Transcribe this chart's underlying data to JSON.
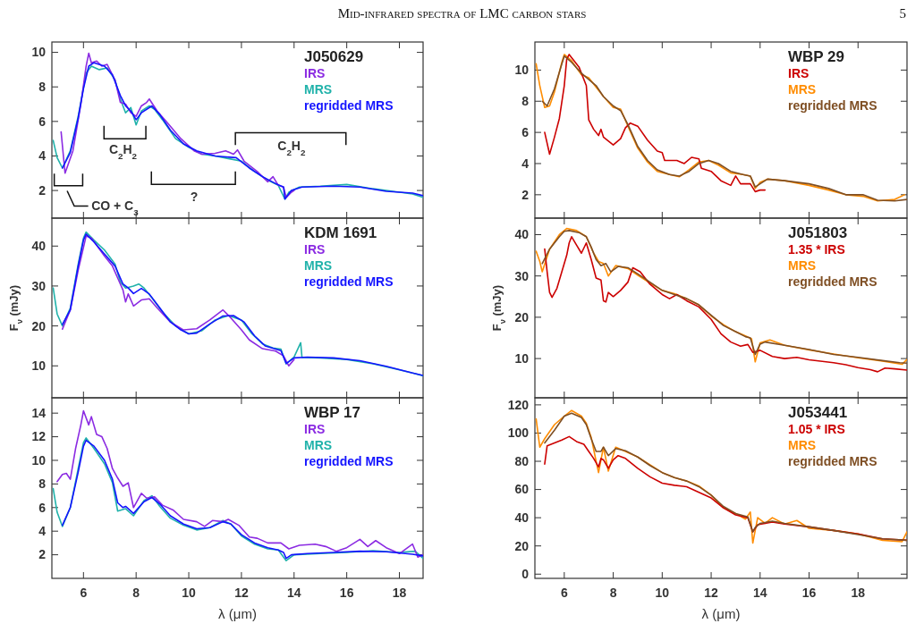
{
  "chart_data": [
    {
      "type": "line",
      "title": "J050629",
      "xlim": [
        4.8,
        18.9
      ],
      "ylim": [
        0.4,
        10.6
      ],
      "xticks": [
        6,
        8,
        10,
        12,
        14,
        16,
        18
      ],
      "yticks": [
        2,
        4,
        6,
        8,
        10
      ],
      "tick_labels": "y",
      "legend": "top right",
      "annotations": [
        "C$_{2}$H$_{2}$",
        "C$_{2}$H$_{2}$",
        "?",
        "CO + C$_{3}$",
        "Mid-infrared spectra of LMC carbon stars",
        "5"
      ],
      "series": [
        {
          "name": "IRS",
          "color": "#8b2be2",
          "x": [
            5.15,
            5.3,
            5.6,
            5.9,
            6.1,
            6.2,
            6.3,
            6.5,
            6.7,
            6.9,
            7.2,
            7.4,
            7.6,
            7.8,
            8.0,
            8.2,
            8.4,
            8.5,
            8.8,
            9.2,
            9.7,
            10.2,
            10.5,
            11.0,
            11.4,
            11.7,
            11.85,
            12.1,
            12.6,
            13.0,
            13.2,
            13.4,
            13.6,
            13.7,
            13.9,
            14.0
          ],
          "values": [
            5.4,
            3.0,
            4.3,
            7.0,
            9.2,
            9.95,
            9.4,
            9.5,
            9.2,
            9.3,
            8.4,
            7.1,
            7.0,
            6.5,
            6.3,
            6.9,
            7.1,
            7.3,
            6.6,
            5.9,
            5.0,
            4.3,
            4.1,
            4.15,
            4.3,
            4.1,
            4.35,
            3.7,
            3.1,
            2.5,
            2.8,
            2.3,
            2.2,
            1.6,
            1.9,
            2.0
          ]
        },
        {
          "name": "MRS",
          "color": "#20b2aa",
          "x": [
            4.85,
            5.0,
            5.2,
            5.5,
            5.8,
            6.1,
            6.3,
            6.6,
            6.9,
            7.2,
            7.4,
            7.6,
            7.8,
            8.0,
            8.2,
            8.5,
            8.7,
            9.0,
            9.5,
            10.0,
            10.5,
            11.0,
            11.5,
            12.0,
            12.5,
            13.0,
            13.4,
            13.65,
            13.8,
            14.2,
            15.0,
            16.0,
            17.0,
            18.0,
            18.5,
            18.9
          ],
          "values": [
            4.9,
            3.9,
            3.3,
            4.3,
            6.3,
            8.8,
            9.2,
            9.0,
            9.1,
            8.4,
            7.3,
            6.5,
            6.8,
            5.8,
            6.6,
            6.9,
            6.7,
            6.1,
            5.0,
            4.5,
            4.1,
            4.0,
            3.85,
            3.7,
            3.1,
            2.6,
            2.3,
            1.5,
            1.9,
            2.2,
            2.25,
            2.35,
            2.1,
            1.9,
            1.8,
            1.6
          ]
        },
        {
          "name": "regridded MRS",
          "color": "#1414ff",
          "x": [
            5.2,
            5.5,
            5.8,
            6.0,
            6.2,
            6.4,
            6.8,
            7.1,
            7.4,
            7.6,
            7.8,
            8.0,
            8.2,
            8.6,
            8.9,
            9.3,
            9.8,
            10.3,
            11.0,
            11.8,
            12.3,
            12.8,
            13.3,
            13.6,
            13.65,
            13.9,
            14.3,
            15.5,
            16.5,
            17.5,
            18.5,
            18.9
          ],
          "values": [
            3.3,
            4.2,
            6.2,
            7.9,
            9.2,
            9.4,
            9.2,
            8.7,
            7.5,
            6.9,
            6.6,
            6.1,
            6.5,
            6.9,
            6.4,
            5.5,
            4.7,
            4.3,
            4.0,
            3.9,
            3.3,
            2.8,
            2.4,
            2.2,
            1.5,
            2.0,
            2.2,
            2.25,
            2.2,
            1.95,
            1.85,
            1.7
          ]
        }
      ]
    },
    {
      "type": "line",
      "title": "WBP 29",
      "xlim": [
        4.8,
        20
      ],
      "ylim": [
        0.5,
        11.8
      ],
      "xticks": [
        6,
        8,
        10,
        12,
        14,
        16,
        18
      ],
      "yticks": [
        2,
        4,
        6,
        8,
        10
      ],
      "tick_labels": "y",
      "legend": "top right",
      "series": [
        {
          "name": "IRS",
          "color": "#cc0000",
          "x": [
            5.2,
            5.4,
            5.6,
            5.8,
            6.0,
            6.1,
            6.2,
            6.4,
            6.6,
            6.9,
            7.0,
            7.2,
            7.4,
            7.5,
            7.6,
            8.0,
            8.3,
            8.5,
            8.7,
            9.0,
            9.4,
            9.8,
            10.0,
            10.1,
            10.6,
            10.9,
            11.2,
            11.5,
            11.6,
            12.0,
            12.4,
            12.8,
            13.0,
            13.2,
            13.6,
            13.8,
            14.0,
            14.2
          ],
          "values": [
            6.0,
            4.6,
            5.7,
            6.9,
            9.0,
            10.7,
            11.0,
            10.6,
            10.2,
            9.0,
            6.8,
            6.2,
            5.8,
            6.2,
            5.7,
            5.2,
            5.6,
            6.3,
            6.6,
            6.4,
            5.5,
            4.8,
            4.7,
            4.2,
            4.2,
            4.0,
            4.4,
            4.3,
            3.7,
            3.5,
            2.9,
            2.6,
            3.2,
            2.7,
            2.7,
            2.2,
            2.3,
            2.3
          ]
        },
        {
          "name": "MRS",
          "color": "#ff8c00",
          "x": [
            4.85,
            5.0,
            5.2,
            5.4,
            5.6,
            5.9,
            6.0,
            6.3,
            6.7,
            7.0,
            7.3,
            7.6,
            8.0,
            8.3,
            8.6,
            9.0,
            9.4,
            9.8,
            10.3,
            10.7,
            11.1,
            11.5,
            11.9,
            12.3,
            12.8,
            13.3,
            13.6,
            13.8,
            14.0,
            14.3,
            15.0,
            16.0,
            16.8,
            17.5,
            18.2,
            18.8,
            19.5,
            19.9
          ],
          "values": [
            10.4,
            9.0,
            7.6,
            7.7,
            8.6,
            10.5,
            11.0,
            10.6,
            9.7,
            9.5,
            8.9,
            8.3,
            7.6,
            7.5,
            6.4,
            5.0,
            4.1,
            3.5,
            3.3,
            3.15,
            3.6,
            4.1,
            4.2,
            3.9,
            3.4,
            3.3,
            3.2,
            2.4,
            2.8,
            3.0,
            2.9,
            2.6,
            2.3,
            2.0,
            1.9,
            1.6,
            1.7,
            2.0
          ]
        },
        {
          "name": "regridded MRS",
          "color": "#7f4f24",
          "x": [
            5.1,
            5.3,
            5.6,
            5.9,
            6.0,
            6.3,
            6.7,
            7.0,
            7.3,
            7.6,
            8.0,
            8.3,
            8.6,
            9.0,
            9.4,
            9.8,
            10.3,
            10.7,
            11.1,
            11.5,
            11.9,
            12.3,
            12.8,
            13.3,
            13.6,
            13.8,
            14.0,
            14.3,
            15.0,
            16.0,
            16.8,
            17.5,
            18.2,
            18.8,
            19.5,
            20.0
          ],
          "values": [
            8.0,
            7.7,
            8.8,
            10.4,
            10.9,
            10.5,
            9.8,
            9.4,
            9.0,
            8.3,
            7.7,
            7.4,
            6.5,
            5.1,
            4.2,
            3.6,
            3.3,
            3.2,
            3.5,
            4.0,
            4.2,
            4.0,
            3.5,
            3.3,
            3.2,
            2.5,
            2.7,
            3.0,
            2.9,
            2.7,
            2.4,
            2.0,
            2.0,
            1.65,
            1.6,
            1.7
          ]
        }
      ]
    },
    {
      "type": "line",
      "title": "KDM 1691",
      "ylabel": "F$_{ν}$ (mJy)",
      "xlim": [
        4.8,
        18.9
      ],
      "ylim": [
        2,
        47
      ],
      "xticks": [
        6,
        8,
        10,
        12,
        14,
        16,
        18
      ],
      "yticks": [
        10,
        20,
        30,
        40
      ],
      "tick_labels": "y",
      "legend": "top right",
      "series": [
        {
          "name": "IRS",
          "color": "#8b2be2",
          "x": [
            5.2,
            5.5,
            5.8,
            6.1,
            6.3,
            6.8,
            7.1,
            7.3,
            7.5,
            7.6,
            7.7,
            7.9,
            8.2,
            8.5,
            8.8,
            9.3,
            9.8,
            10.3,
            10.8,
            11.3,
            11.6,
            12.0,
            12.3,
            12.8,
            13.3,
            13.6,
            13.8,
            14.0
          ],
          "values": [
            19.2,
            24,
            34,
            42.5,
            42,
            37.5,
            35,
            32,
            29,
            26,
            28,
            25,
            26.5,
            26.8,
            24.5,
            21,
            19,
            19.3,
            21.5,
            24,
            22,
            19,
            16.5,
            14.3,
            13.7,
            12.5,
            10.0,
            11.6
          ]
        },
        {
          "name": "MRS",
          "color": "#20b2aa",
          "x": [
            4.85,
            5.0,
            5.2,
            5.5,
            5.8,
            6.0,
            6.1,
            6.4,
            6.8,
            7.2,
            7.4,
            7.6,
            7.9,
            8.1,
            8.3,
            8.6,
            9.0,
            9.5,
            10.0,
            10.5,
            11.0,
            11.5,
            12.0,
            12.4,
            12.8,
            13.2,
            13.5,
            13.7,
            14.0,
            14.25,
            14.3,
            15.0,
            16.0,
            17.0,
            18.0,
            18.5,
            18.9
          ],
          "values": [
            29.5,
            23,
            20.0,
            24.5,
            35.5,
            42,
            43.5,
            41.5,
            39,
            35.5,
            31,
            29.5,
            30,
            30.5,
            29.5,
            27,
            23.5,
            20,
            18,
            18.8,
            21.5,
            22.6,
            21.5,
            18,
            15.5,
            14.5,
            14.2,
            10.5,
            12.2,
            15.8,
            12.1,
            12.0,
            11.6,
            10.5,
            9.0,
            8.2,
            7.5
          ]
        },
        {
          "name": "regridded MRS",
          "color": "#1414ff",
          "x": [
            5.2,
            5.5,
            5.8,
            6.0,
            6.1,
            6.4,
            6.8,
            7.2,
            7.5,
            7.7,
            7.9,
            8.2,
            8.5,
            8.9,
            9.3,
            9.7,
            10.0,
            10.3,
            10.8,
            11.3,
            11.7,
            12.1,
            12.5,
            12.9,
            13.3,
            13.5,
            13.7,
            14.0,
            14.5,
            15.5,
            16.5,
            17.5,
            18.5,
            18.9
          ],
          "values": [
            20.4,
            24,
            35,
            41.5,
            43,
            41,
            38,
            35,
            30.5,
            29.5,
            28.1,
            29.4,
            28,
            24.5,
            21,
            19,
            18,
            18.2,
            20.5,
            22.5,
            22.6,
            21,
            17.5,
            15,
            14.2,
            13.8,
            10.6,
            12,
            12.2,
            12,
            11.3,
            9.9,
            8.2,
            7.6
          ]
        }
      ]
    },
    {
      "type": "line",
      "title": "J051803",
      "ylabel": "F$_{ν}$ (mJy)",
      "xlim": [
        4.8,
        20
      ],
      "ylim": [
        0.5,
        44
      ],
      "xticks": [
        6,
        8,
        10,
        12,
        14,
        16,
        18
      ],
      "yticks": [
        10,
        20,
        30,
        40
      ],
      "tick_labels": "y",
      "legend": "top right",
      "series": [
        {
          "name": "1.35 * IRS",
          "color": "#cc0000",
          "x": [
            5.2,
            5.3,
            5.4,
            5.5,
            5.7,
            5.9,
            6.1,
            6.2,
            6.3,
            6.5,
            6.7,
            6.9,
            7.1,
            7.3,
            7.5,
            7.6,
            7.7,
            7.8,
            8.0,
            8.3,
            8.6,
            8.8,
            9.1,
            9.5,
            10.0,
            10.3,
            10.6,
            11.0,
            11.5,
            12.0,
            12.4,
            12.8,
            13.2,
            13.5,
            13.7,
            14.0,
            14.5,
            15.0,
            15.5,
            16.0,
            17.0,
            17.5,
            18.0,
            18.5,
            18.8,
            19.1,
            19.5,
            20.0
          ],
          "values": [
            36.5,
            31,
            26,
            24.8,
            27,
            31,
            35,
            38,
            39.5,
            37.5,
            35.5,
            38,
            34,
            29.5,
            29,
            24,
            23.7,
            26,
            25,
            26.5,
            28.5,
            32,
            31,
            28,
            25.5,
            24.5,
            25.5,
            24,
            22.5,
            19.5,
            16,
            14,
            13,
            13.4,
            11.5,
            12.0,
            10.5,
            10.0,
            10.3,
            9.7,
            9.0,
            8.5,
            7.8,
            7.3,
            6.8,
            7.7,
            7.5,
            7.2
          ]
        },
        {
          "name": "MRS",
          "color": "#ff8c00",
          "x": [
            4.85,
            5.0,
            5.1,
            5.4,
            5.8,
            6.1,
            6.5,
            6.9,
            7.2,
            7.4,
            7.6,
            7.8,
            8.1,
            8.6,
            9.0,
            9.5,
            10.0,
            10.5,
            11.0,
            11.5,
            12.0,
            12.5,
            13.0,
            13.4,
            13.65,
            13.8,
            14.0,
            14.4,
            15.0,
            16.0,
            17.0,
            18.0,
            19.0,
            19.8,
            20.0
          ],
          "values": [
            36,
            33.5,
            31,
            36.5,
            40,
            41.5,
            41,
            39.5,
            35.5,
            33.5,
            33,
            30,
            32.5,
            31.8,
            30.2,
            28.3,
            26.5,
            25.7,
            24.5,
            23,
            20.3,
            18.2,
            16.5,
            15.5,
            14.8,
            9.2,
            13.8,
            14.5,
            13.2,
            12.1,
            11.1,
            10.2,
            9.4,
            8.6,
            9.8
          ]
        },
        {
          "name": "regridded MRS",
          "color": "#7f4f24",
          "x": [
            5.1,
            5.4,
            5.8,
            6.0,
            6.2,
            6.6,
            6.9,
            7.1,
            7.3,
            7.5,
            7.7,
            7.9,
            8.2,
            8.6,
            9.0,
            9.5,
            10.0,
            10.5,
            11.0,
            11.5,
            12.0,
            12.5,
            13.0,
            13.4,
            13.6,
            13.8,
            14.0,
            14.2,
            15.0,
            16.0,
            17.0,
            18.0,
            19.0,
            19.7,
            20.0
          ],
          "values": [
            33,
            36.5,
            39.5,
            40.8,
            41,
            40.5,
            39.5,
            37,
            34,
            32.5,
            33,
            31,
            32.3,
            32,
            30.5,
            28.5,
            26.5,
            25.5,
            24.5,
            23,
            20.5,
            18,
            16.5,
            15.3,
            15,
            11.0,
            13.5,
            14.0,
            13.2,
            12.2,
            11.0,
            10.3,
            9.5,
            9.0,
            8.9
          ]
        }
      ]
    },
    {
      "type": "line",
      "title": "WBP 17",
      "xlabel": "λ (μm)",
      "xlim": [
        4.8,
        18.9
      ],
      "ylim": [
        0,
        15.3
      ],
      "xticks": [
        6,
        8,
        10,
        12,
        14,
        16,
        18
      ],
      "yticks": [
        2,
        4,
        6,
        8,
        10,
        12,
        14
      ],
      "legend": "top right",
      "series": [
        {
          "name": "IRS",
          "color": "#8b2be2",
          "x": [
            5.0,
            5.2,
            5.35,
            5.5,
            5.7,
            5.9,
            6.0,
            6.2,
            6.3,
            6.5,
            6.7,
            6.9,
            7.1,
            7.3,
            7.5,
            7.7,
            7.9,
            8.2,
            8.4,
            8.7,
            9.0,
            9.4,
            9.8,
            10.3,
            10.6,
            10.9,
            11.3,
            11.5,
            11.9,
            12.3,
            12.6,
            13.0,
            13.5,
            13.8,
            14.2,
            14.8,
            15.2,
            15.6,
            16.0,
            16.5,
            16.8,
            17.1,
            17.5,
            18.0,
            18.5,
            18.7,
            18.9
          ],
          "values": [
            8.2,
            8.8,
            8.9,
            8.4,
            11.0,
            13.0,
            14.2,
            13.0,
            13.7,
            12.2,
            12.0,
            11.0,
            9.3,
            8.5,
            7.8,
            8.1,
            6.0,
            7.2,
            6.8,
            6.9,
            6.2,
            5.8,
            5.0,
            4.8,
            4.4,
            4.9,
            4.8,
            5.0,
            4.5,
            3.5,
            3.4,
            3.0,
            3.0,
            2.5,
            2.8,
            2.9,
            2.7,
            2.3,
            2.6,
            3.3,
            2.7,
            3.2,
            2.6,
            2.1,
            2.9,
            1.8,
            2.0
          ]
        },
        {
          "name": "MRS",
          "color": "#20b2aa",
          "x": [
            4.85,
            5.0,
            5.2,
            5.5,
            5.8,
            6.0,
            6.1,
            6.4,
            6.8,
            7.1,
            7.3,
            7.6,
            7.9,
            8.3,
            8.6,
            8.9,
            9.3,
            9.8,
            10.3,
            10.8,
            11.3,
            11.6,
            12.0,
            12.5,
            13.0,
            13.4,
            13.7,
            14.0,
            15.0,
            16.0,
            17.0,
            18.0,
            18.6,
            18.9
          ],
          "values": [
            7.6,
            5.6,
            4.4,
            6.0,
            9.3,
            11.5,
            11.9,
            11.0,
            9.7,
            8.1,
            5.7,
            5.9,
            5.3,
            6.6,
            7.0,
            6.1,
            5.1,
            4.5,
            4.1,
            4.3,
            4.9,
            4.6,
            3.6,
            2.9,
            2.5,
            2.4,
            1.5,
            2.0,
            2.1,
            2.2,
            2.35,
            2.2,
            2.3,
            1.7
          ]
        },
        {
          "name": "regridded MRS",
          "color": "#1414ff",
          "x": [
            5.2,
            5.5,
            5.8,
            6.0,
            6.1,
            6.4,
            6.8,
            7.1,
            7.3,
            7.5,
            7.6,
            7.9,
            8.3,
            8.6,
            8.9,
            9.3,
            9.8,
            10.3,
            10.8,
            11.3,
            11.6,
            12.0,
            12.5,
            13.0,
            13.4,
            13.6,
            13.7,
            13.9,
            14.5,
            15.5,
            16.5,
            17.5,
            18.5,
            18.9
          ],
          "values": [
            4.5,
            6.0,
            9.0,
            11.2,
            11.7,
            11.2,
            10.0,
            8.4,
            6.4,
            6.0,
            6.1,
            5.5,
            6.5,
            6.85,
            6.3,
            5.3,
            4.6,
            4.2,
            4.3,
            4.8,
            4.6,
            3.7,
            3.0,
            2.6,
            2.4,
            2.2,
            1.7,
            2.0,
            2.1,
            2.2,
            2.3,
            2.25,
            2.05,
            1.9
          ]
        }
      ]
    },
    {
      "type": "line",
      "title": "J053441",
      "xlabel": "λ (μm)",
      "xlim": [
        4.8,
        20
      ],
      "ylim": [
        -3,
        125
      ],
      "xticks": [
        6,
        8,
        10,
        12,
        14,
        16,
        18
      ],
      "yticks": [
        0,
        20,
        40,
        60,
        80,
        100,
        120
      ],
      "legend": "top right",
      "series": [
        {
          "name": "1.05 * IRS",
          "color": "#cc0000",
          "x": [
            5.2,
            5.3,
            5.6,
            5.9,
            6.2,
            6.5,
            6.8,
            7.0,
            7.2,
            7.4,
            7.5,
            7.6,
            7.8,
            8.0,
            8.2,
            8.5,
            9.0,
            9.5,
            10.0,
            10.5,
            11.0,
            11.5,
            12.0,
            12.5,
            13.0,
            13.5,
            13.7,
            13.9,
            14.5,
            15.0,
            16.0,
            17.0,
            18.0,
            19.0,
            20.0
          ],
          "values": [
            78,
            91,
            93,
            95,
            97.5,
            94,
            92,
            87,
            82,
            76,
            82,
            81,
            75,
            81,
            84,
            82,
            75,
            69,
            64.5,
            63,
            62,
            58,
            54,
            47,
            42,
            40,
            30,
            35,
            37,
            35.5,
            33.5,
            31,
            28.5,
            25,
            24
          ]
        },
        {
          "name": "MRS",
          "color": "#ff8c00",
          "x": [
            4.85,
            5.0,
            5.2,
            5.6,
            6.0,
            6.3,
            6.7,
            6.9,
            7.1,
            7.3,
            7.4,
            7.6,
            7.8,
            8.1,
            8.5,
            9.0,
            9.5,
            10.0,
            10.5,
            11.0,
            11.5,
            12.0,
            12.5,
            13.0,
            13.4,
            13.6,
            13.7,
            13.9,
            14.2,
            14.5,
            15.0,
            15.5,
            16.0,
            17.0,
            18.0,
            19.0,
            19.8,
            20.0
          ],
          "values": [
            110,
            90,
            96,
            106,
            112,
            116,
            112,
            107,
            97,
            80,
            72,
            90,
            73,
            90,
            87,
            83,
            77.5,
            72,
            68.5,
            66,
            62.5,
            56,
            47,
            43,
            39,
            44,
            22,
            40,
            36,
            40,
            35.5,
            38,
            32.5,
            31,
            28.5,
            24,
            23,
            30
          ]
        },
        {
          "name": "regridded MRS",
          "color": "#7f4f24",
          "x": [
            5.2,
            5.6,
            6.0,
            6.3,
            6.7,
            6.9,
            7.1,
            7.3,
            7.5,
            7.6,
            7.8,
            8.1,
            8.5,
            9.0,
            9.5,
            10.0,
            10.5,
            11.0,
            11.5,
            12.0,
            12.5,
            13.0,
            13.5,
            13.7,
            13.8,
            14.0,
            14.5,
            15.0,
            16.0,
            17.0,
            18.0,
            19.0,
            20.0
          ],
          "values": [
            93,
            102,
            112,
            114,
            111,
            106,
            96,
            87,
            87,
            90,
            84,
            89,
            87.5,
            83,
            77,
            72,
            68.5,
            66,
            62,
            56,
            48,
            43,
            40.5,
            30,
            33,
            36,
            37.5,
            36,
            33.5,
            31,
            28,
            25,
            24
          ]
        }
      ]
    }
  ]
}
